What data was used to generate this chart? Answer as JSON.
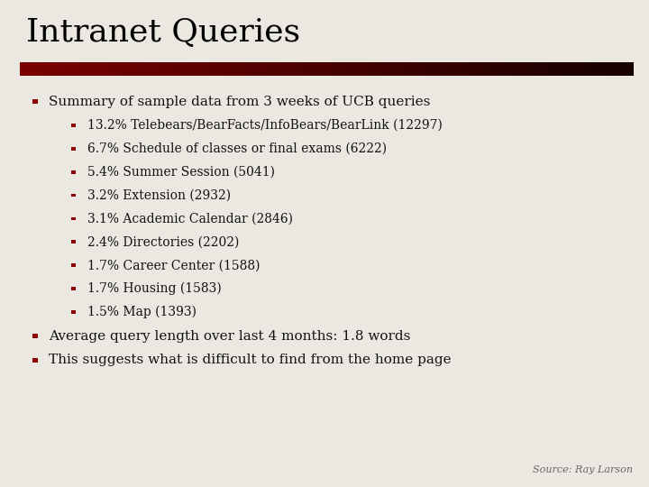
{
  "title": "Intranet Queries",
  "background_color": "#eae8e0",
  "title_color": "#000000",
  "title_fontsize": 26,
  "bullet_color": "#8b0000",
  "main_bullets": [
    "Summary of sample data from 3 weeks of UCB queries",
    "Average query length over last 4 months: 1.8 words",
    "This suggests what is difficult to find from the home page"
  ],
  "sub_bullets": [
    "13.2% Telebears/BearFacts/InfoBears/BearLink (12297)",
    "6.7% Schedule of classes or final exams (6222)",
    "5.4% Summer Session (5041)",
    "3.2% Extension (2932)",
    "3.1% Academic Calendar (2846)",
    "2.4% Directories (2202)",
    "1.7% Career Center (1588)",
    "1.7% Housing (1583)",
    "1.5% Map (1393)"
  ],
  "source_text": "Source: Ray Larson",
  "source_color": "#666666",
  "source_fontsize": 8,
  "main_bullet_fontsize": 11,
  "sub_bullet_fontsize": 10,
  "font_family": "DejaVu Serif"
}
